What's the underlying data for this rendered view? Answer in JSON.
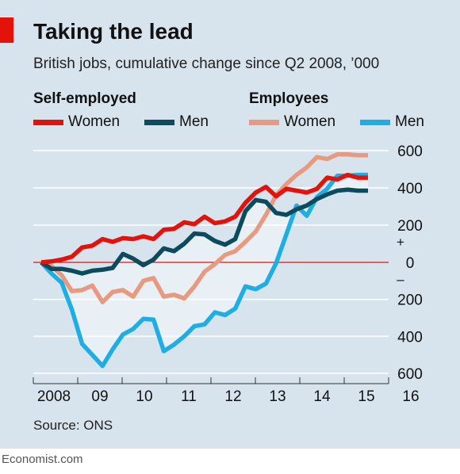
{
  "header": {
    "title": "Taking the lead",
    "subtitle": "British jobs, cumulative change since Q2 2008, ’000"
  },
  "legend": {
    "group1": "Self-employed",
    "group2": "Employees",
    "items": [
      {
        "label": "Women",
        "color": "#e3120b"
      },
      {
        "label": "Men",
        "color": "#0c4a5e"
      },
      {
        "label": "Women",
        "color": "#e89a80"
      },
      {
        "label": "Men",
        "color": "#1faee3"
      }
    ]
  },
  "footer": {
    "source": "Source: ONS",
    "brand": "Economist.com"
  },
  "colors": {
    "background": "#d7e4ed",
    "accent": "#e3120b",
    "zero_line": "#e3120b",
    "gridline": "#ffffff",
    "shade": "#e8f0f6"
  },
  "chart_data": {
    "type": "line",
    "title": "Taking the lead",
    "subtitle": "British jobs, cumulative change since Q2 2008, ’000",
    "x_tick_labels": [
      "2008",
      "09",
      "10",
      "11",
      "12",
      "13",
      "14",
      "15",
      "16"
    ],
    "y_ticks": [
      {
        "value": 600,
        "label": "600"
      },
      {
        "value": 400,
        "label": "400"
      },
      {
        "value": 200,
        "label": "200"
      },
      {
        "value": 0,
        "label": "0"
      },
      {
        "value": -200,
        "label": "200"
      },
      {
        "value": -400,
        "label": "400"
      },
      {
        "value": -600,
        "label": "600"
      }
    ],
    "sign_labels": {
      "plus": "+",
      "minus": "–"
    },
    "ylim": [
      -600,
      600
    ],
    "xlim": [
      2008.25,
      2016.25
    ],
    "grid": true,
    "legend_position": "top",
    "x": [
      2008.25,
      2008.5,
      2008.75,
      2009.0,
      2009.25,
      2009.5,
      2009.75,
      2010.0,
      2010.25,
      2010.5,
      2010.75,
      2011.0,
      2011.25,
      2011.5,
      2011.75,
      2012.0,
      2012.25,
      2012.5,
      2012.75,
      2013.0,
      2013.25,
      2013.5,
      2013.75,
      2014.0,
      2014.25,
      2014.5,
      2014.75,
      2015.0,
      2015.25,
      2015.5,
      2015.75,
      2016.0,
      2016.25
    ],
    "series": [
      {
        "name": "Self-employed Women",
        "color": "#e3120b",
        "values": [
          0,
          5,
          15,
          30,
          80,
          90,
          125,
          110,
          130,
          125,
          140,
          125,
          175,
          180,
          215,
          205,
          245,
          210,
          220,
          245,
          320,
          375,
          405,
          355,
          395,
          385,
          375,
          395,
          455,
          445,
          470,
          455,
          455
        ]
      },
      {
        "name": "Self-employed Men",
        "color": "#0c4a5e",
        "values": [
          0,
          -35,
          -35,
          -45,
          -60,
          -45,
          -40,
          -30,
          45,
          20,
          -15,
          15,
          75,
          60,
          100,
          155,
          150,
          115,
          95,
          125,
          275,
          335,
          325,
          265,
          255,
          285,
          305,
          340,
          365,
          385,
          390,
          385,
          385
        ]
      },
      {
        "name": "Employees Women",
        "color": "#e89a80",
        "values": [
          0,
          -20,
          -70,
          -155,
          -150,
          -125,
          -215,
          -160,
          -150,
          -185,
          -100,
          -85,
          -185,
          -175,
          -195,
          -130,
          -50,
          -10,
          40,
          60,
          110,
          165,
          255,
          360,
          420,
          470,
          510,
          565,
          555,
          580,
          580,
          575,
          575
        ]
      },
      {
        "name": "Employees Men",
        "color": "#1faee3",
        "values": [
          0,
          -60,
          -110,
          -255,
          -440,
          -500,
          -560,
          -470,
          -390,
          -360,
          -305,
          -310,
          -480,
          -445,
          -400,
          -345,
          -335,
          -270,
          -285,
          -250,
          -130,
          -145,
          -115,
          -5,
          150,
          305,
          250,
          350,
          395,
          465,
          465,
          470,
          470
        ]
      }
    ]
  }
}
